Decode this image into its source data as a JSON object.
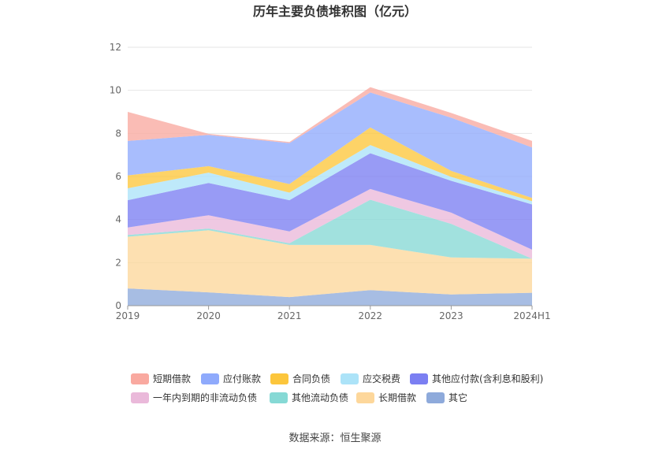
{
  "chart_data": {
    "type": "area",
    "stacked": true,
    "title": "历年主要负债堆积图（亿元）",
    "categories": [
      "2019",
      "2020",
      "2021",
      "2022",
      "2023",
      "2024H1"
    ],
    "yticks": [
      "0",
      "2",
      "4",
      "6",
      "8",
      "10",
      "12"
    ],
    "ylim": [
      0,
      12
    ],
    "grid": true,
    "legend_position": "bottom",
    "series": [
      {
        "name": "其它",
        "color": "#8eaadb",
        "values": [
          0.8,
          0.62,
          0.4,
          0.72,
          0.52,
          0.6
        ]
      },
      {
        "name": "长期借款",
        "color": "#fdd79b",
        "values": [
          2.4,
          2.88,
          2.42,
          2.1,
          1.72,
          1.58
        ]
      },
      {
        "name": "其他流动负债",
        "color": "#86d9d5",
        "values": [
          0.08,
          0.08,
          0.08,
          2.1,
          1.56,
          0.0
        ]
      },
      {
        "name": "一年内到期的非流动负债",
        "color": "#eab9da",
        "values": [
          0.35,
          0.62,
          0.55,
          0.5,
          0.52,
          0.42
        ]
      },
      {
        "name": "其他应付款(含利息和股利)",
        "color": "#7b7ff2",
        "values": [
          1.27,
          1.5,
          1.45,
          1.66,
          1.48,
          2.1
        ]
      },
      {
        "name": "应交税费",
        "color": "#ace3f8",
        "values": [
          0.55,
          0.48,
          0.35,
          0.38,
          0.18,
          0.15
        ]
      },
      {
        "name": "合同负债",
        "color": "#fcc63c",
        "values": [
          0.6,
          0.3,
          0.4,
          0.82,
          0.28,
          0.15
        ]
      },
      {
        "name": "应付账款",
        "color": "#8faafc",
        "values": [
          1.6,
          1.45,
          1.9,
          1.62,
          2.47,
          2.35
        ]
      },
      {
        "name": "短期借款",
        "color": "#f9a9a0",
        "values": [
          1.35,
          0.05,
          0.05,
          0.25,
          0.22,
          0.3
        ]
      }
    ],
    "legend_order": [
      "短期借款",
      "应付账款",
      "合同负债",
      "应交税费",
      "其他应付款(含利息和股利)",
      "一年内到期的非流动负债",
      "其他流动负债",
      "长期借款",
      "其它"
    ]
  },
  "source": "数据来源：恒生聚源"
}
